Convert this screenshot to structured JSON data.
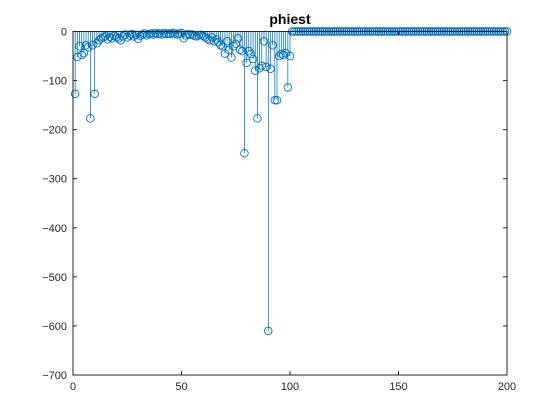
{
  "chart_data": {
    "type": "stem",
    "title": "phiest",
    "xlabel": "",
    "ylabel": "",
    "xlim": [
      0,
      200
    ],
    "ylim": [
      -700,
      0
    ],
    "xticks": [
      0,
      50,
      100,
      150,
      200
    ],
    "yticks": [
      0,
      -100,
      -200,
      -300,
      -400,
      -500,
      -600,
      -700
    ],
    "grid": false,
    "legend": "none",
    "series": [
      {
        "color": "#0072BD",
        "marker": "circle",
        "x": [
          1,
          2,
          3,
          4,
          5,
          6,
          7,
          8,
          9,
          10,
          11,
          12,
          13,
          14,
          15,
          16,
          17,
          18,
          19,
          20,
          21,
          22,
          23,
          24,
          25,
          26,
          27,
          28,
          29,
          30,
          31,
          32,
          33,
          34,
          35,
          36,
          37,
          38,
          39,
          40,
          41,
          42,
          43,
          44,
          45,
          46,
          47,
          48,
          49,
          50,
          51,
          52,
          53,
          54,
          55,
          56,
          57,
          58,
          59,
          60,
          61,
          62,
          63,
          64,
          65,
          66,
          67,
          68,
          69,
          70,
          71,
          72,
          73,
          74,
          75,
          76,
          77,
          78,
          79,
          80,
          81,
          82,
          83,
          84,
          85,
          86,
          87,
          88,
          89,
          90,
          91,
          92,
          93,
          94,
          95,
          96,
          97,
          98,
          99,
          100,
          101,
          102,
          103,
          104,
          105,
          106,
          107,
          108,
          109,
          110,
          111,
          112,
          113,
          114,
          115,
          116,
          117,
          118,
          119,
          120,
          121,
          122,
          123,
          124,
          125,
          126,
          127,
          128,
          129,
          130,
          131,
          132,
          133,
          134,
          135,
          136,
          137,
          138,
          139,
          140,
          141,
          142,
          143,
          144,
          145,
          146,
          147,
          148,
          149,
          150,
          151,
          152,
          153,
          154,
          155,
          156,
          157,
          158,
          159,
          160,
          161,
          162,
          163,
          164,
          165,
          166,
          167,
          168,
          169,
          170,
          171,
          172,
          173,
          174,
          175,
          176,
          177,
          178,
          179,
          180,
          181,
          182,
          183,
          184,
          185,
          186,
          187,
          188,
          189,
          190,
          191,
          192,
          193,
          194,
          195,
          196,
          197,
          198,
          199,
          200
        ],
        "y": [
          -127,
          -52,
          -30,
          -48,
          -44,
          -28,
          -32,
          -177,
          -28,
          -127,
          -24,
          -18,
          -14,
          -12,
          -10,
          -16,
          -11,
          -14,
          -9,
          -12,
          -14,
          -18,
          -10,
          -6,
          -12,
          -8,
          -5,
          -10,
          -7,
          -15,
          -9,
          -6,
          -4,
          -8,
          -5,
          -4,
          -6,
          -3,
          -5,
          -4,
          -6,
          -3,
          -5,
          -4,
          -5,
          -3,
          -4,
          -6,
          -4,
          -3,
          -14,
          -8,
          -5,
          -7,
          -6,
          -9,
          -10,
          -8,
          -7,
          -9,
          -12,
          -15,
          -18,
          -12,
          -20,
          -16,
          -22,
          -28,
          -30,
          -45,
          -20,
          -38,
          -53,
          -30,
          -25,
          -14,
          -37,
          -40,
          -248,
          -64,
          -40,
          -46,
          -56,
          -80,
          -177,
          -75,
          -70,
          -20,
          -72,
          -610,
          -76,
          -28,
          -140,
          -140,
          -50,
          -46,
          -48,
          -44,
          -114,
          -50,
          0,
          0,
          0,
          0,
          0,
          0,
          0,
          0,
          0,
          0,
          0,
          0,
          0,
          0,
          0,
          0,
          0,
          0,
          0,
          0,
          0,
          0,
          0,
          0,
          0,
          0,
          0,
          0,
          0,
          0,
          0,
          0,
          0,
          0,
          0,
          0,
          0,
          0,
          0,
          0,
          0,
          0,
          0,
          0,
          0,
          0,
          0,
          0,
          0,
          0,
          0,
          0,
          0,
          0,
          0,
          0,
          0,
          0,
          0,
          0,
          0,
          0,
          0,
          0,
          0,
          0,
          0,
          0,
          0,
          0,
          0,
          0,
          0,
          0,
          0,
          0,
          0,
          0,
          0,
          0,
          0,
          0,
          0,
          0,
          0,
          0,
          0,
          0,
          0,
          0,
          0,
          0,
          0,
          0,
          0,
          0,
          0,
          0,
          0,
          0
        ]
      }
    ]
  }
}
